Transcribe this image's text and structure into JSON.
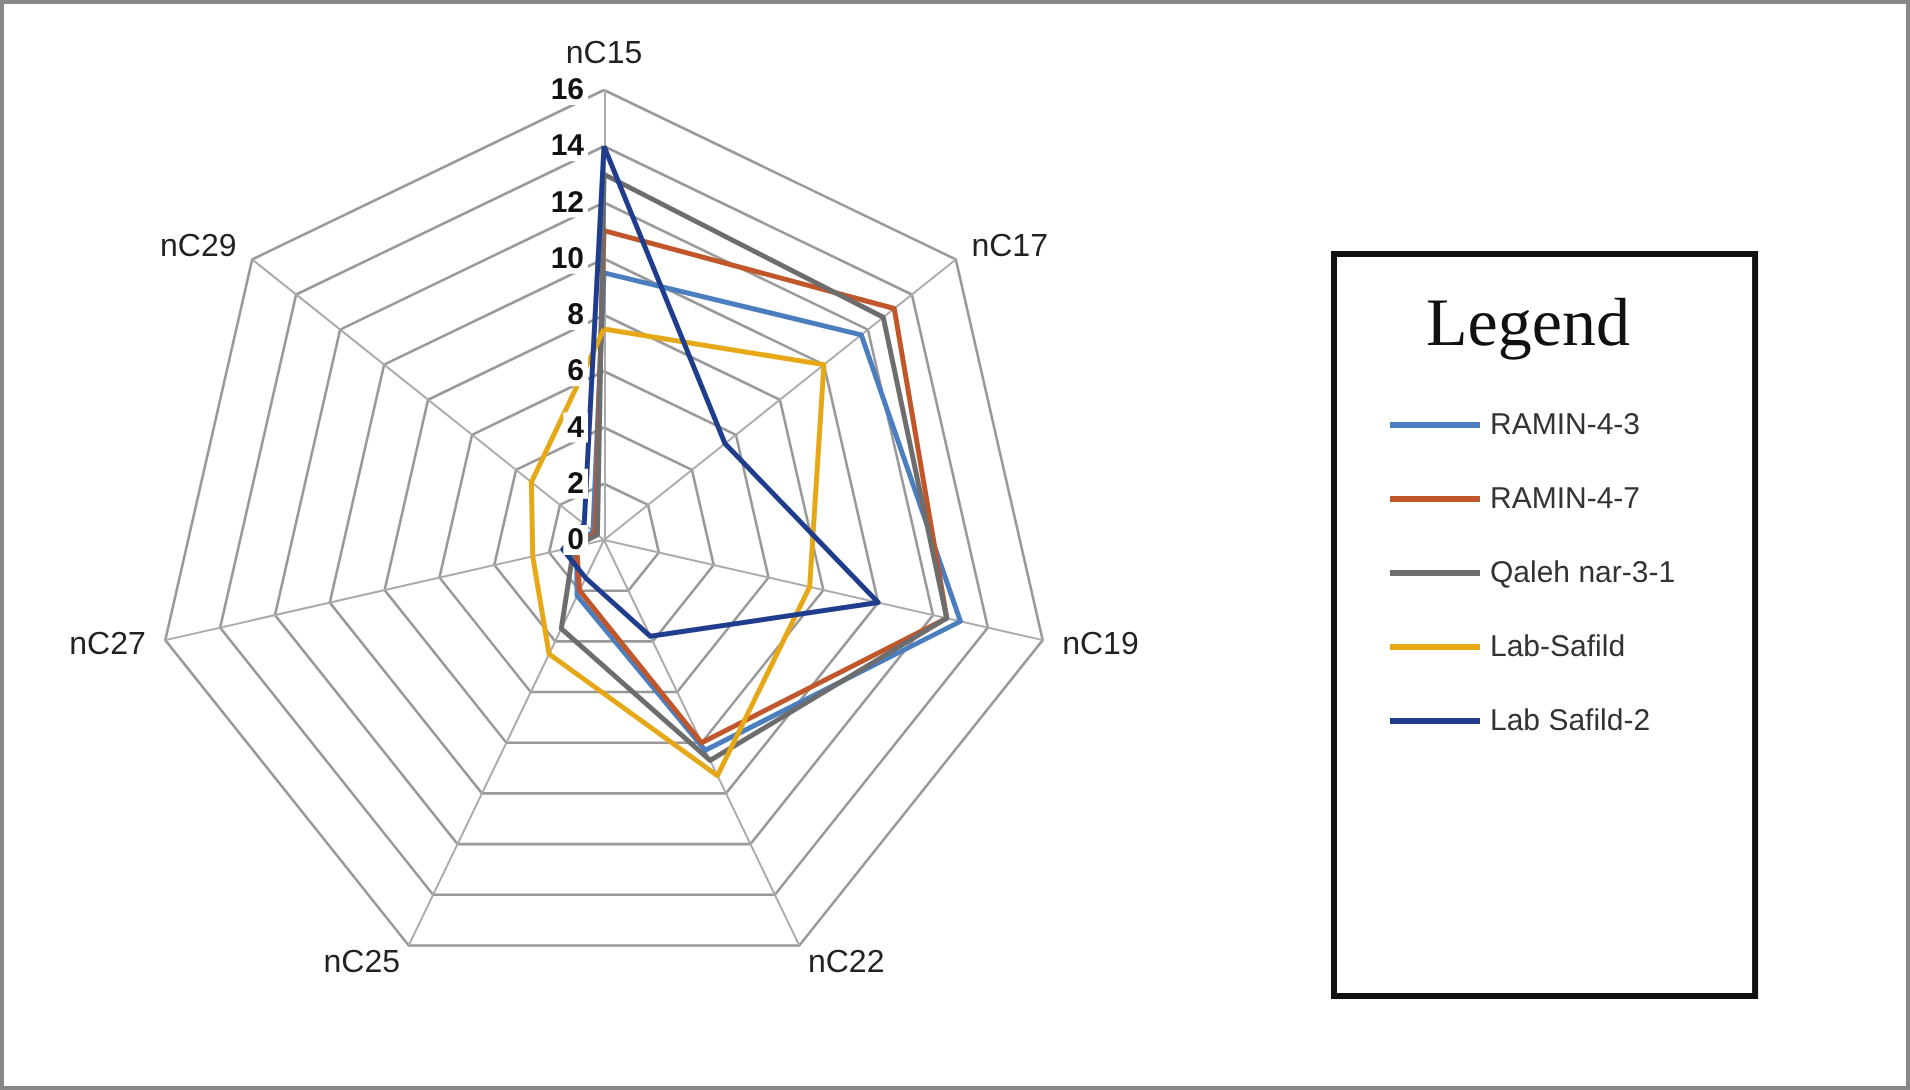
{
  "chart_data": {
    "type": "radar",
    "legend_title": "Legend",
    "legend": "right",
    "categories": [
      "nC15",
      "nC17",
      "nC19",
      "nC22",
      "nC25",
      "nC27",
      "nC29"
    ],
    "ylim": [
      0,
      16
    ],
    "yticks": [
      0,
      2,
      4,
      6,
      8,
      10,
      12,
      14,
      16
    ],
    "grid": true,
    "marker": "none",
    "series": [
      {
        "name": "RAMIN-4-3",
        "color": "#4a7ebf",
        "values": [
          9.5,
          11.7,
          13,
          8.3,
          2.2,
          1,
          0.5
        ]
      },
      {
        "name": "RAMIN-4-7",
        "color": "#c0562a",
        "values": [
          11,
          13.2,
          12.5,
          8,
          2,
          1,
          0.4
        ]
      },
      {
        "name": "Qaleh nar-3-1",
        "color": "#6d6d6d",
        "values": [
          13,
          12.7,
          12.5,
          8.7,
          3.5,
          1.1,
          0.3
        ]
      },
      {
        "name": "Lab-Safild",
        "color": "#e6a817",
        "values": [
          7.5,
          10,
          7.5,
          9.3,
          4.5,
          2.6,
          3.3
        ]
      },
      {
        "name": "Lab Safild-2",
        "color": "#1f3d8c",
        "values": [
          14,
          5.5,
          10,
          3.8,
          1.5,
          1.5,
          0.9
        ]
      }
    ]
  }
}
